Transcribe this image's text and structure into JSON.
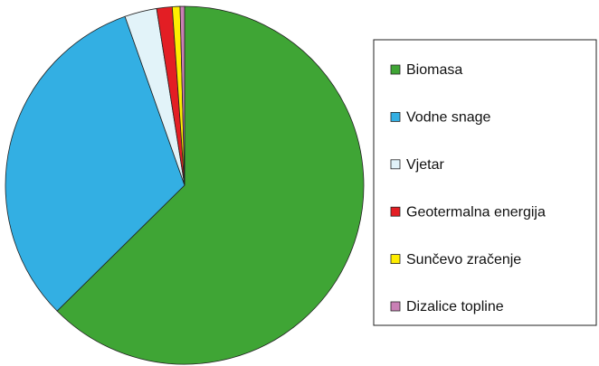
{
  "chart_data": {
    "type": "pie",
    "categories": [
      "Biomasa",
      "Vodne snage",
      "Vjetar",
      "Geotermalna energija",
      "Sunčevo zračenje",
      "Dizalice topline"
    ],
    "values": [
      62.6,
      32,
      2.9,
      1.4,
      0.7,
      0.4
    ],
    "colors": [
      "#3fa535",
      "#33afe3",
      "#e2f3f9",
      "#e31e24",
      "#ffed00",
      "#c97fb5"
    ],
    "legend": "right"
  }
}
